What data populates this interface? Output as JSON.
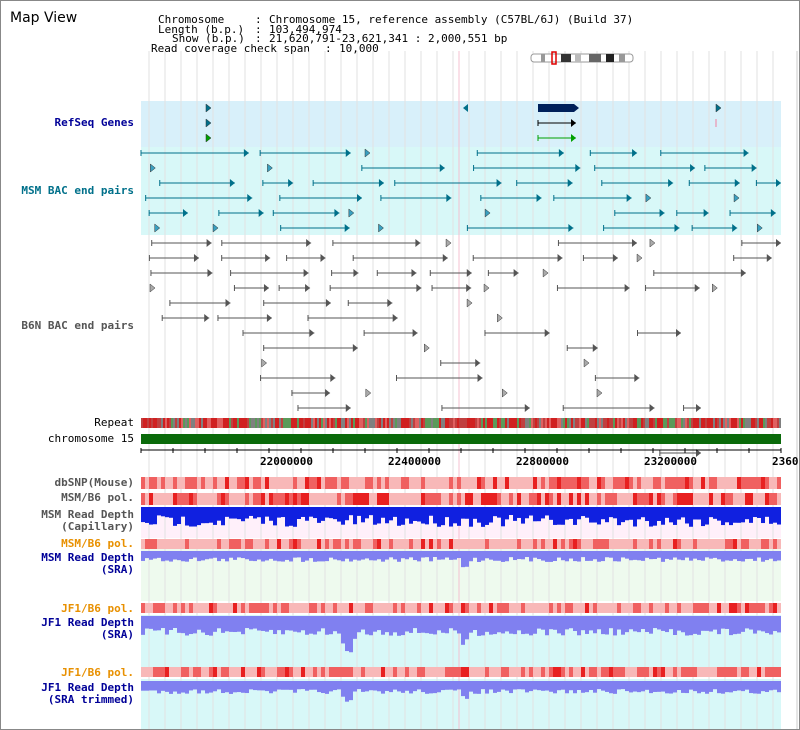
{
  "title": "Map View",
  "info": {
    "chromosome_key": "Chromosome",
    "chromosome_val": "Chromosome 15, reference assembly (C57BL/6J) (Build 37)",
    "length_key": "Length (b.p.)",
    "length_val": "103,494,974",
    "show_key": "Show (b.p.)",
    "show_val": "21,620,791-23,621,341 : 2,000,551 bp",
    "coverage_key": "Read coverage check span",
    "coverage_val": "10,000"
  },
  "tracks": {
    "refseq": "RefSeq Genes",
    "msm_bac": "MSM BAC end pairs",
    "b6n_bac": "B6N BAC end pairs",
    "repeat": "Repeat",
    "chrom": "chromosome 15",
    "dbsnp": "dbSNP(Mouse)",
    "msm_b6_pol_1": "MSM/B6 pol.",
    "msm_depth_cap_1": "MSM Read Depth",
    "msm_depth_cap_2": "(Capillary)",
    "msm_b6_pol_2": "MSM/B6 pol.",
    "msm_depth_sra_1": "MSM Read Depth",
    "msm_depth_sra_2": "(SRA)",
    "jf1_pol_1": "JF1/B6 pol.",
    "jf1_depth_1": "JF1 Read Depth",
    "jf1_depth_2": "(SRA)",
    "jf1_pol_2": "JF1/B6 pol.",
    "jf1_trim_1": "JF1 Read Depth",
    "jf1_trim_2": "(SRA trimmed)"
  },
  "axis": {
    "ticks": [
      "22000000",
      "22400000",
      "22800000",
      "23200000",
      "2360"
    ]
  },
  "colors": {
    "refseq_bg": "#d8f0fa",
    "msm_bg": "#d8f8f8",
    "msm_feature": "#00708a",
    "b6n_feature": "#555555",
    "chrom_green": "#0a6a0a",
    "depth_blue": "#1020e0",
    "depth_light": "#8080f0",
    "pol_red": "#f04040",
    "label_blue": "#000098",
    "label_teal": "#00708a",
    "label_gray": "#555555",
    "label_orange": "#e89000"
  }
}
